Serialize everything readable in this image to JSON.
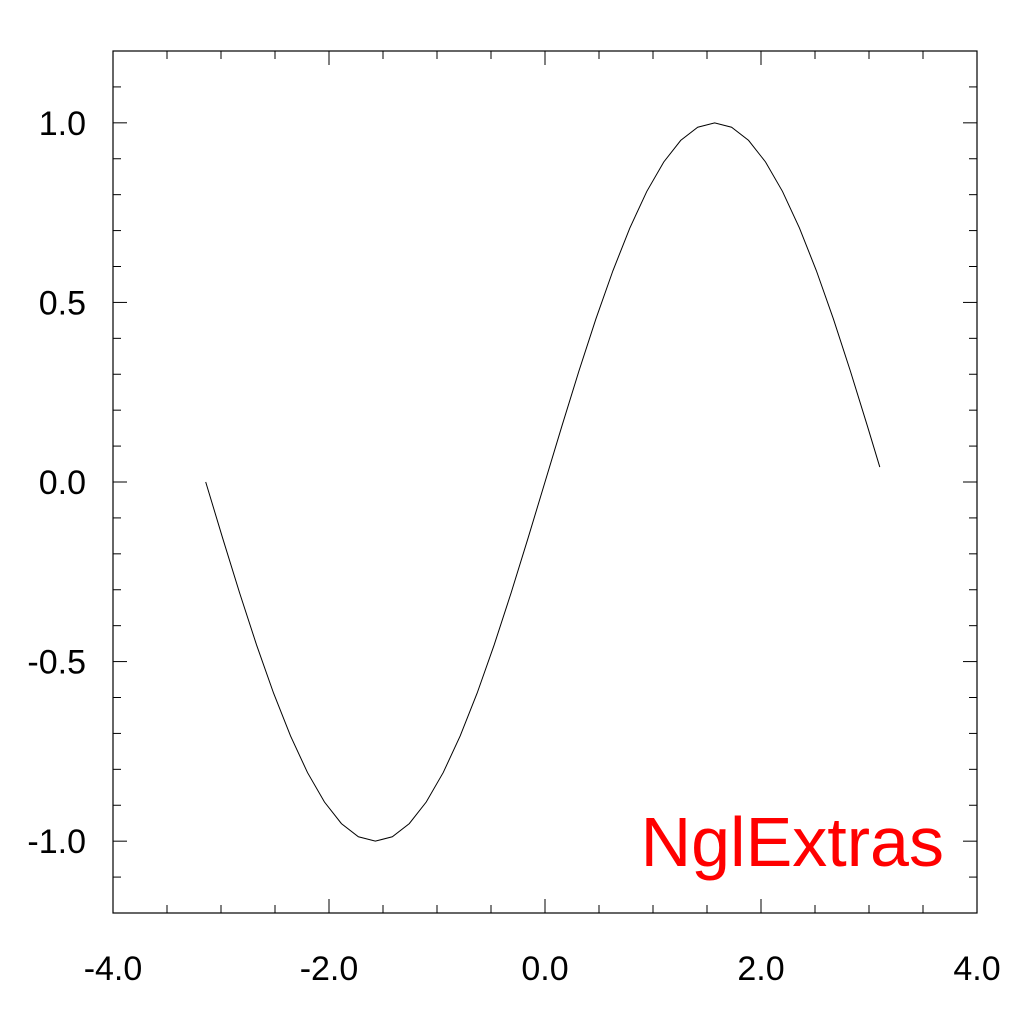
{
  "chart_data": {
    "type": "line",
    "title": "",
    "xlabel": "",
    "ylabel": "",
    "xlim": [
      -4.0,
      4.0
    ],
    "ylim": [
      -1.2,
      1.2
    ],
    "grid": false,
    "x_ticks": [
      -4.0,
      -2.0,
      0.0,
      2.0,
      4.0
    ],
    "x_tick_labels": [
      "-4.0",
      "-2.0",
      "0.0",
      "2.0",
      "4.0"
    ],
    "x_minor_step": 0.5,
    "y_ticks": [
      -1.0,
      -0.5,
      0.0,
      0.5,
      1.0
    ],
    "y_tick_labels": [
      "-1.0",
      "-0.5",
      "0.0",
      "0.5",
      "1.0"
    ],
    "y_minor_step": 0.1,
    "series": [
      {
        "x": [
          -3.1416,
          -2.9845,
          -2.8274,
          -2.6704,
          -2.5133,
          -2.3562,
          -2.1991,
          -2.042,
          -1.885,
          -1.7279,
          -1.5708,
          -1.4137,
          -1.2566,
          -1.0996,
          -0.9425,
          -0.7854,
          -0.6283,
          -0.4712,
          -0.3142,
          -0.1571,
          0.0,
          0.1571,
          0.3142,
          0.4712,
          0.6283,
          0.7854,
          0.9425,
          1.0996,
          1.2566,
          1.4137,
          1.5708,
          1.7279,
          1.885,
          2.042,
          2.1991,
          2.3562,
          2.5133,
          2.6704,
          2.8274,
          2.9845,
          3.1
        ],
        "y": [
          0.0,
          -0.1564,
          -0.309,
          -0.454,
          -0.5878,
          -0.7071,
          -0.809,
          -0.891,
          -0.9511,
          -0.9877,
          -1.0,
          -0.9877,
          -0.9511,
          -0.891,
          -0.809,
          -0.7071,
          -0.5878,
          -0.454,
          -0.309,
          -0.1564,
          0.0,
          0.1564,
          0.309,
          0.454,
          0.5878,
          0.7071,
          0.809,
          0.891,
          0.9511,
          0.9877,
          1.0,
          0.9877,
          0.9511,
          0.891,
          0.809,
          0.7071,
          0.5878,
          0.454,
          0.309,
          0.1564,
          0.0416
        ],
        "color": "#000000"
      }
    ],
    "annotations": [
      {
        "text": "NglExtras",
        "color": "#ff0000",
        "position": "bottom-right"
      }
    ]
  }
}
